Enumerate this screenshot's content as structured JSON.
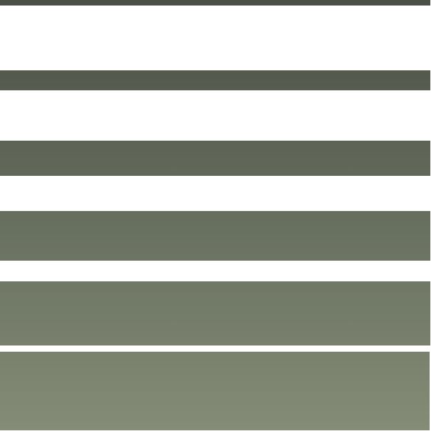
{
  "stripes": {
    "count": 6,
    "gradient_top_color": "#4a5045",
    "gradient_bottom_color": "#848c77",
    "background_color": "#ffffff"
  }
}
